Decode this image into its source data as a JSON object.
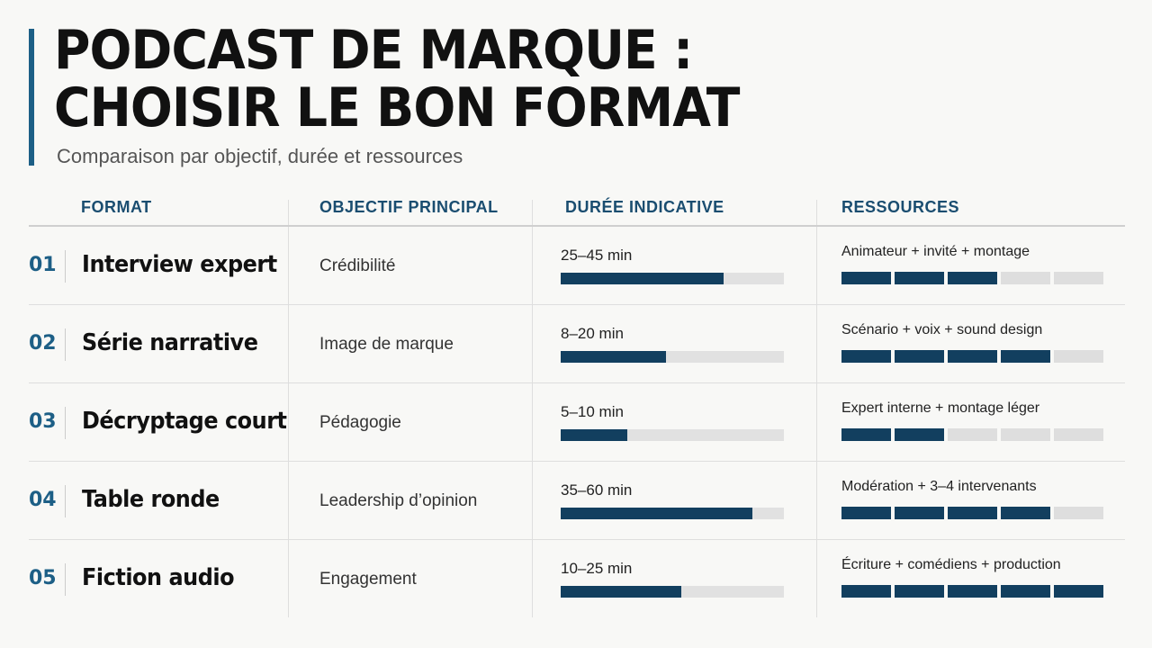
{
  "header": {
    "title_line1": "PODCAST DE MARQUE :",
    "title_line2": "CHOISIR LE BON FORMAT",
    "subtitle": "Comparaison par objectif, durée et ressources"
  },
  "table": {
    "columns": [
      "FORMAT",
      "OBJECTIF PRINCIPAL",
      "DURÉE INDICATIVE",
      "RESSOURCES"
    ],
    "rows": [
      {
        "num": "01",
        "format": "Interview expert",
        "objective": "Crédibilité",
        "duration": "25–45 min",
        "duration_level": 0.73,
        "resources": "Animateur + invité + montage",
        "resource_level": 3,
        "resource_max": 5
      },
      {
        "num": "02",
        "format": "Série narrative",
        "objective": "Image de marque",
        "duration": "8–20 min",
        "duration_level": 0.47,
        "resources": "Scénario + voix + sound design",
        "resource_level": 4,
        "resource_max": 5
      },
      {
        "num": "03",
        "format": "Décryptage court",
        "objective": "Pédagogie",
        "duration": "5–10 min",
        "duration_level": 0.3,
        "resources": "Expert interne + montage léger",
        "resource_level": 2,
        "resource_max": 5
      },
      {
        "num": "04",
        "format": "Table ronde",
        "objective": "Leadership d’opinion",
        "duration": "35–60 min",
        "duration_level": 0.86,
        "resources": "Modération + 3–4 intervenants",
        "resource_level": 4,
        "resource_max": 5
      },
      {
        "num": "05",
        "format": "Fiction audio",
        "objective": "Engagement",
        "duration": "10–25 min",
        "duration_level": 0.54,
        "resources": "Écriture + comédiens + production",
        "resource_level": 5,
        "resource_max": 5
      }
    ]
  },
  "colors": {
    "accent": "#1d5f86",
    "bar_fill": "#123f5f",
    "bar_track": "#e1e1e1",
    "header_text": "#1a4d70"
  }
}
